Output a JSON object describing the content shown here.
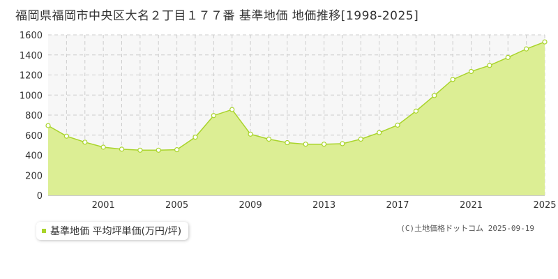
{
  "title": "福岡県福岡市中央区大名２丁目１７７番 基準地価 地価推移[1998-2025]",
  "legend_label": "基準地価 平均坪単価(万円/坪)",
  "credit": "(C)土地価格ドットコム 2025-09-19",
  "colors": {
    "fill": "#dcee94",
    "line": "#a9d42b",
    "marker_fill": "#ffffff",
    "marker_stroke": "#a9d42b",
    "upper_band": "#f7f7f7",
    "grid": "#cccccc",
    "axis_text": "#333333"
  },
  "chart_data": {
    "type": "area",
    "title": "福岡県福岡市中央区大名２丁目１７７番 基準地価 地価推移[1998-2025]",
    "xlabel": "",
    "ylabel": "",
    "series": [
      {
        "name": "基準地価 平均坪単価(万円/坪)",
        "points": [
          {
            "x": 1998,
            "y": 695
          },
          {
            "x": 1999,
            "y": 590
          },
          {
            "x": 2000,
            "y": 530
          },
          {
            "x": 2001,
            "y": 480
          },
          {
            "x": 2002,
            "y": 460
          },
          {
            "x": 2003,
            "y": 450
          },
          {
            "x": 2004,
            "y": 450
          },
          {
            "x": 2005,
            "y": 455
          },
          {
            "x": 2006,
            "y": 580
          },
          {
            "x": 2007,
            "y": 795
          },
          {
            "x": 2008,
            "y": 855
          },
          {
            "x": 2009,
            "y": 610
          },
          {
            "x": 2010,
            "y": 560
          },
          {
            "x": 2011,
            "y": 525
          },
          {
            "x": 2012,
            "y": 510
          },
          {
            "x": 2013,
            "y": 510
          },
          {
            "x": 2014,
            "y": 515
          },
          {
            "x": 2015,
            "y": 560
          },
          {
            "x": 2016,
            "y": 625
          },
          {
            "x": 2017,
            "y": 700
          },
          {
            "x": 2018,
            "y": 840
          },
          {
            "x": 2019,
            "y": 995
          },
          {
            "x": 2020,
            "y": 1155
          },
          {
            "x": 2021,
            "y": 1235
          },
          {
            "x": 2022,
            "y": 1295
          },
          {
            "x": 2023,
            "y": 1375
          },
          {
            "x": 2024,
            "y": 1460
          },
          {
            "x": 2025,
            "y": 1530
          }
        ]
      }
    ],
    "xlim": [
      1998,
      2025
    ],
    "ylim": [
      0,
      1600
    ],
    "x_ticks": [
      2001,
      2005,
      2009,
      2013,
      2017,
      2021,
      2025
    ],
    "y_ticks": [
      0,
      200,
      400,
      600,
      800,
      1000,
      1200,
      1400,
      1600
    ],
    "grid": true,
    "legend_position": "bottom-left"
  }
}
